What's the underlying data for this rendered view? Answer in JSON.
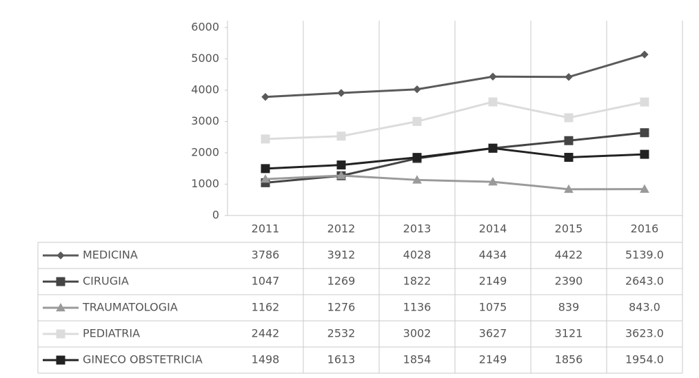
{
  "chart_data": {
    "type": "line",
    "categories": [
      "2011",
      "2012",
      "2013",
      "2014",
      "2015",
      "2016"
    ],
    "ylim": [
      0,
      6000
    ],
    "yticks": [
      0,
      1000,
      2000,
      3000,
      4000,
      5000,
      6000
    ],
    "series": [
      {
        "name": "MEDICINA",
        "color": "#5a5a5a",
        "marker": "diamond",
        "values": [
          3786,
          3912,
          4028,
          4434,
          4422,
          5139
        ],
        "value_labels": [
          "3786",
          "3912",
          "4028",
          "4434",
          "4422",
          "5139.0"
        ]
      },
      {
        "name": "CIRUGIA",
        "color": "#444444",
        "marker": "square",
        "values": [
          1047,
          1269,
          1822,
          2149,
          2390,
          2643
        ],
        "value_labels": [
          "1047",
          "1269",
          "1822",
          "2149",
          "2390",
          "2643.0"
        ]
      },
      {
        "name": "TRAUMATOLOGIA",
        "color": "#9a9a9a",
        "marker": "triangle",
        "values": [
          1162,
          1276,
          1136,
          1075,
          839,
          843
        ],
        "value_labels": [
          "1162",
          "1276",
          "1136",
          "1075",
          "839",
          "843.0"
        ]
      },
      {
        "name": "PEDIATRIA",
        "color": "#dcdcdc",
        "marker": "square",
        "values": [
          2442,
          2532,
          3002,
          3627,
          3121,
          3623
        ],
        "value_labels": [
          "2442",
          "2532",
          "3002",
          "3627",
          "3121",
          "3623.0"
        ]
      },
      {
        "name": "GINECO OBSTETRICIA",
        "color": "#222222",
        "marker": "square",
        "values": [
          1498,
          1613,
          1854,
          2149,
          1856,
          1954
        ],
        "value_labels": [
          "1498",
          "1613",
          "1854",
          "2149",
          "1856",
          "1954.0"
        ]
      }
    ]
  }
}
